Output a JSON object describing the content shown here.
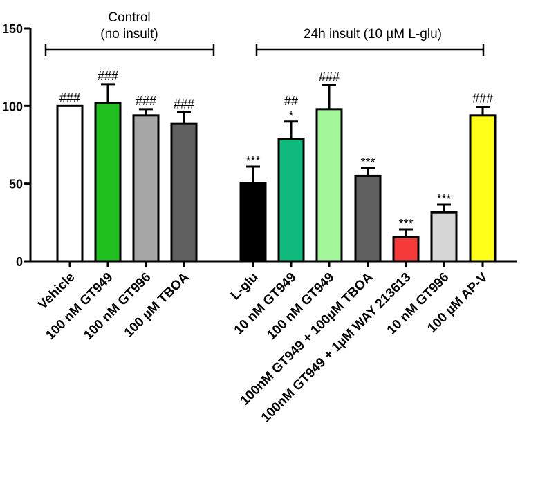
{
  "chart_data": {
    "type": "bar",
    "title": "",
    "xlabel": "",
    "ylabel": "",
    "ylim": [
      0,
      150
    ],
    "yticks": [
      0,
      50,
      100,
      150
    ],
    "grid": false,
    "groups": [
      {
        "label_line1": "Control",
        "label_line2": "(no insult)"
      },
      {
        "label_line1": "24h insult (10 µM L-glu)",
        "label_line2": ""
      }
    ],
    "categories": [
      "Vehicle",
      "100 nM GT949",
      "100 nM GT996",
      "100 µM TBOA",
      "L-glu",
      "10 nM GT949",
      "100 nM GT949",
      "100nM GT949 + 100µM TBOA",
      "100nM GT949 + 1µM WAY 213613",
      "10 nM GT996",
      "100  µM AP-V"
    ],
    "values": [
      100,
      102,
      94,
      88.5,
      50.5,
      79,
      98,
      55,
      15.5,
      31.5,
      94
    ],
    "errors": [
      0,
      12,
      4,
      7.5,
      10.5,
      11,
      15.5,
      5,
      5,
      5,
      5.5
    ],
    "colors": [
      "#ffffff",
      "#1fbf1f",
      "#a6a6a6",
      "#5f5f5f",
      "#000000",
      "#10b97c",
      "#a3f79a",
      "#5f5f5f",
      "#f53a3a",
      "#d6d6d6",
      "#ffff1a"
    ],
    "annotations_top": [
      "###",
      "###",
      "###",
      "###",
      "",
      "##",
      "###",
      "",
      "",
      "",
      "###"
    ],
    "annotations_bottom": [
      "",
      "",
      "",
      "",
      "***",
      "*",
      "",
      "***",
      "***",
      "***",
      ""
    ]
  }
}
